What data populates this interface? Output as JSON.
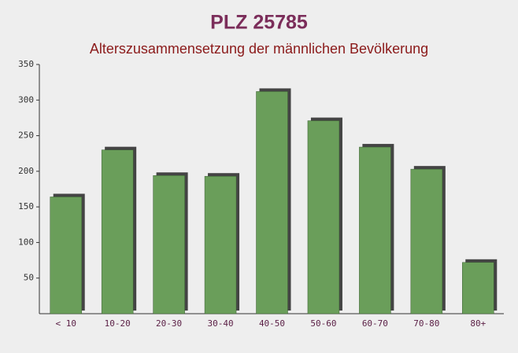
{
  "chart_data": {
    "type": "bar",
    "title": "PLZ 25785",
    "subtitle": "Alterszusammensetzung der männlichen Bevölkerung",
    "categories": [
      "< 10",
      "10-20",
      "20-30",
      "30-40",
      "40-50",
      "50-60",
      "60-70",
      "70-80",
      "80+"
    ],
    "values": [
      164,
      230,
      194,
      193,
      312,
      271,
      234,
      203,
      72
    ],
    "color": "#6a9e5a",
    "ylim": [
      0,
      350
    ],
    "yticks": [
      50,
      100,
      150,
      200,
      250,
      300,
      350
    ],
    "grid": false
  }
}
